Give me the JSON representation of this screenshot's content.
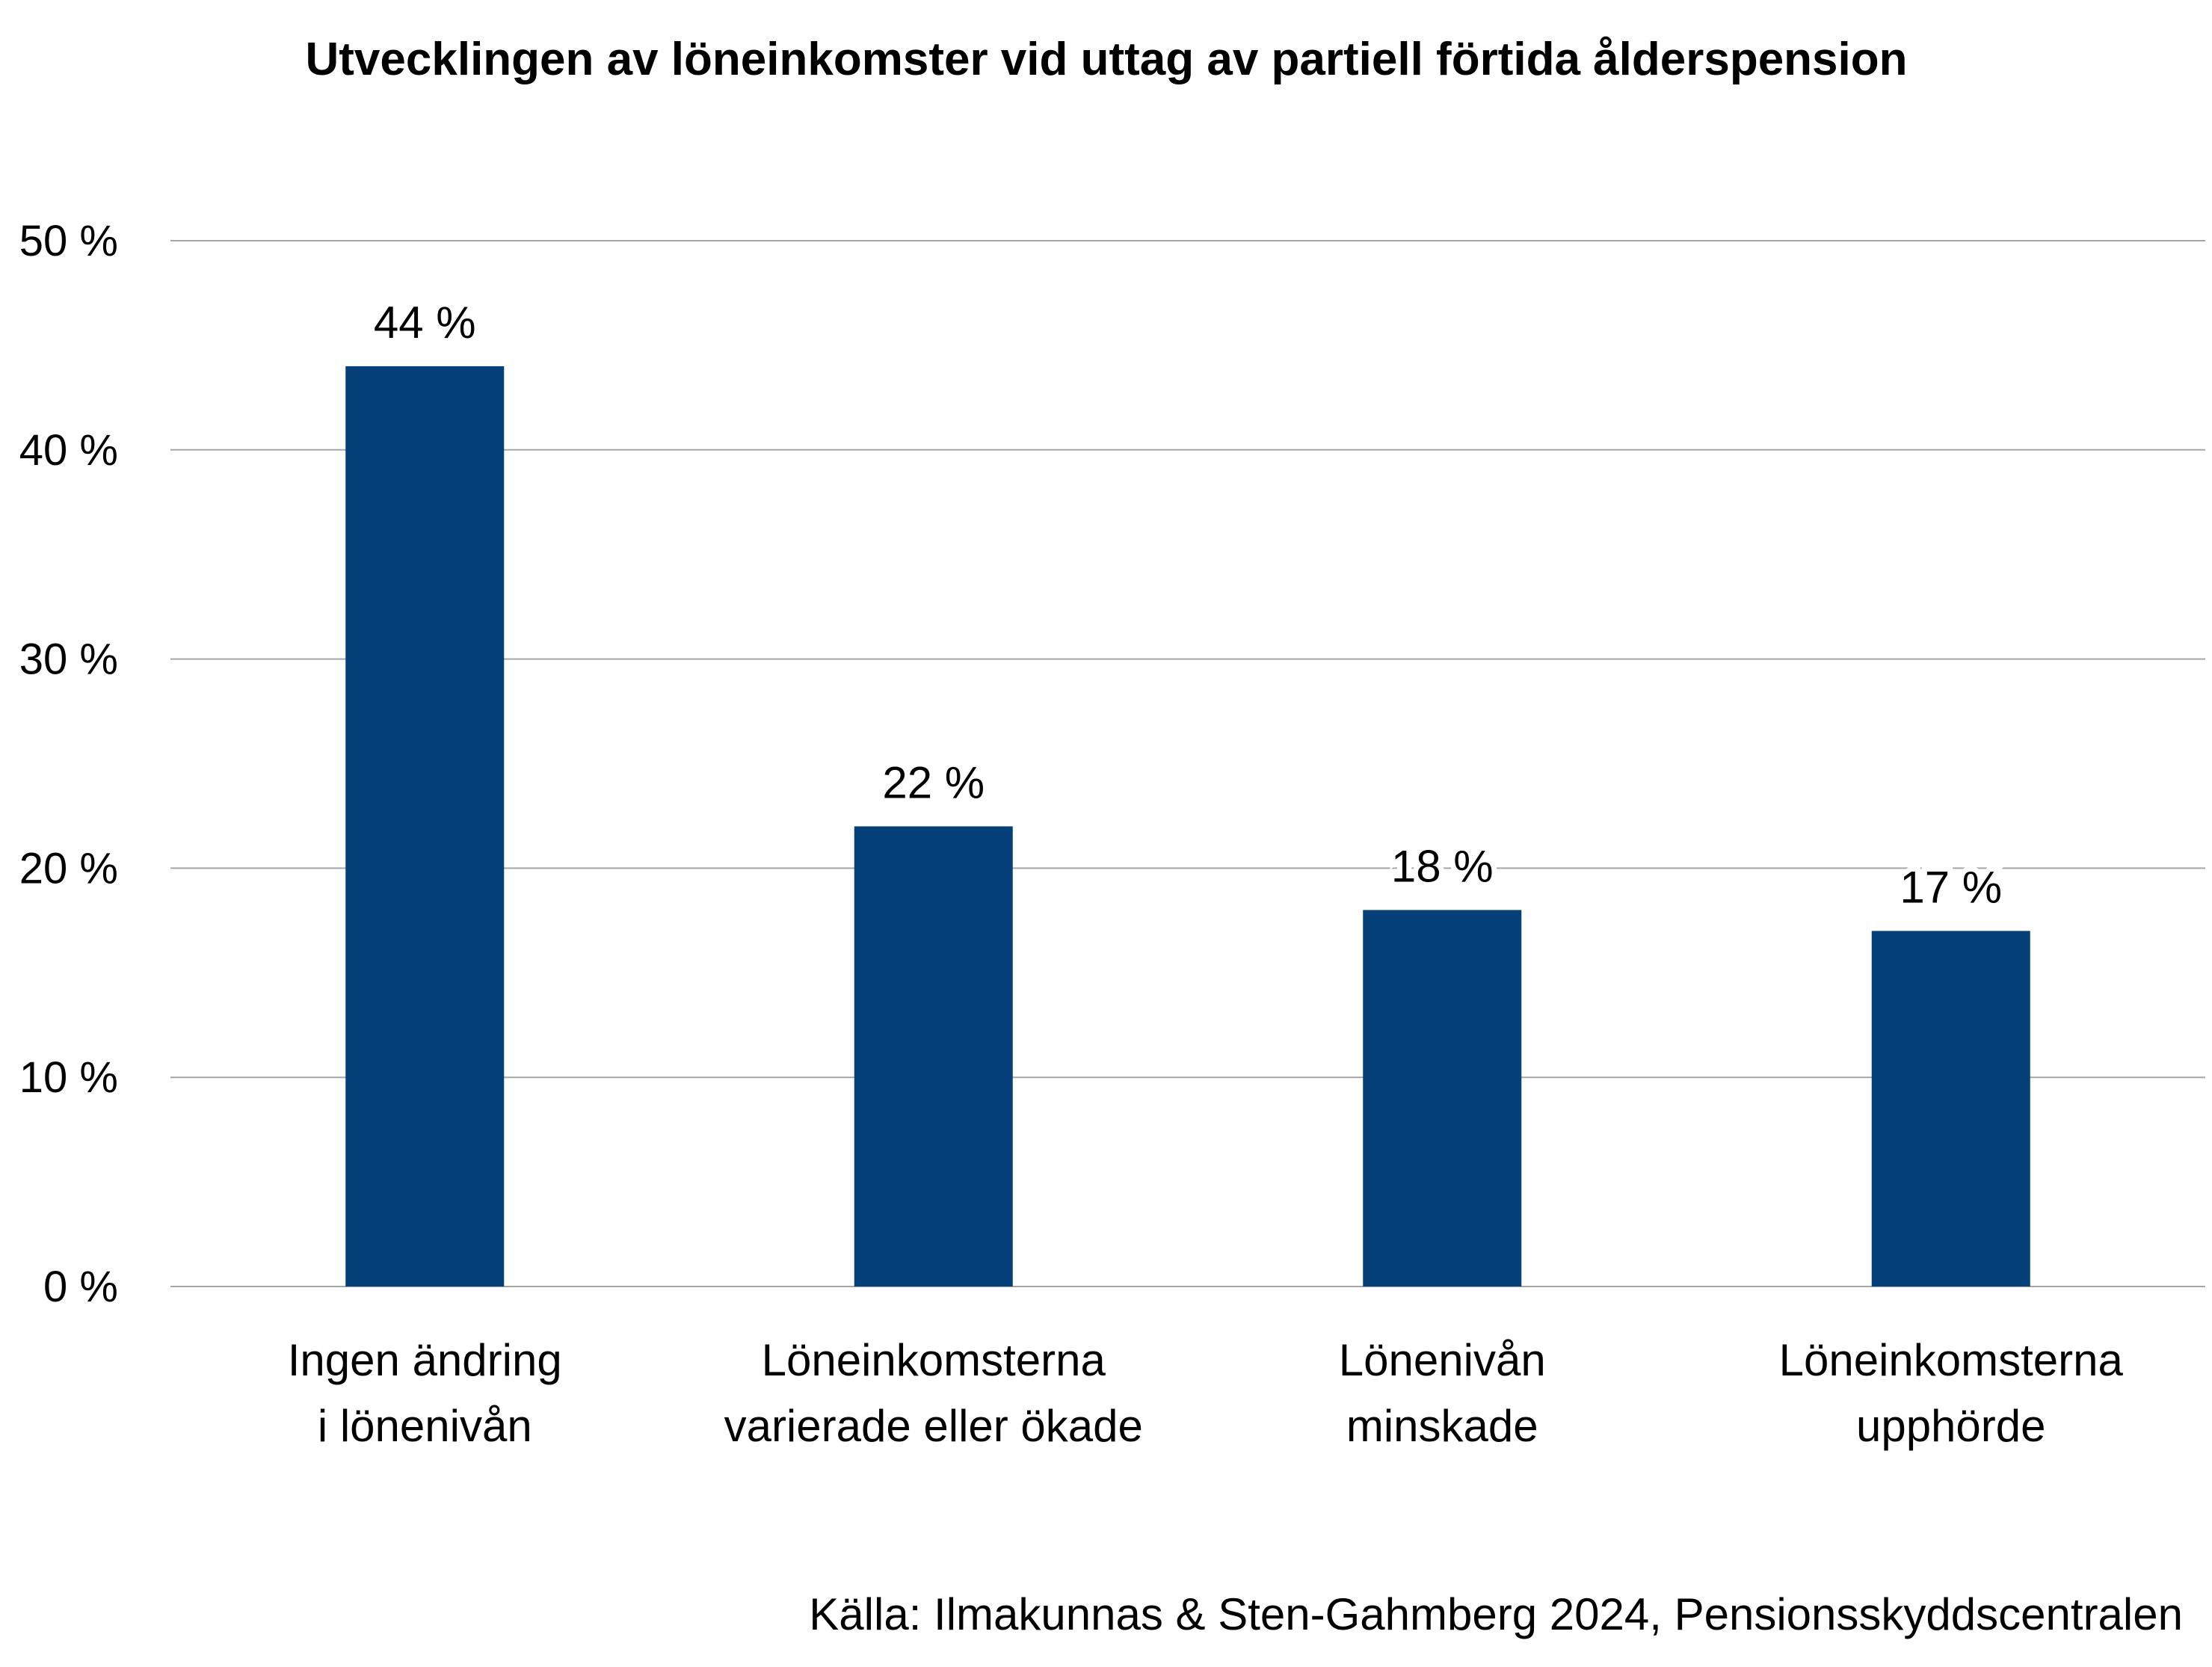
{
  "chart_data": {
    "type": "bar",
    "title": "Utvecklingen av löneinkomster vid uttag av partiell förtida ålderspension",
    "categories": [
      [
        "Ingen ändring",
        "i lönenivån"
      ],
      [
        "Löneinkomsterna",
        "varierade eller ökade"
      ],
      [
        "Lönenivån",
        "minskade"
      ],
      [
        "Löneinkomsterna",
        "upphörde"
      ]
    ],
    "values": [
      44,
      22,
      18,
      17
    ],
    "value_labels": [
      "44 %",
      "22 %",
      "18 %",
      "17 %"
    ],
    "xlabel": "",
    "ylabel": "",
    "ylim": [
      0,
      50
    ],
    "y_ticks": [
      0,
      10,
      20,
      30,
      40,
      50
    ],
    "y_tick_labels": [
      "0 %",
      "10 %",
      "20 %",
      "30 %",
      "40 %",
      "50 %"
    ],
    "grid": true,
    "legend": "none",
    "bar_color": "#054079",
    "grid_color": "#a6a6a6"
  },
  "source": "Källa: Ilmakunnas & Sten-Gahmberg 2024, Pensionsskyddscentralen"
}
